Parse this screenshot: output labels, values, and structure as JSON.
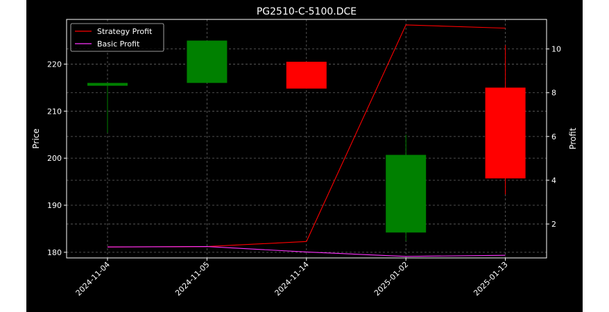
{
  "chart_data": {
    "type": "candlestick",
    "title": "PG2510-C-5100.DCE",
    "ylabel_left": "Price",
    "ylabel_right": "Profit",
    "categories": [
      "2024-11-04",
      "2024-11-05",
      "2024-11-14",
      "2025-01-02",
      "2025-01-13"
    ],
    "ylim_left": [
      178.8,
      229.5
    ],
    "yticks_left": [
      180,
      190,
      200,
      210,
      220
    ],
    "ylim_right": [
      0.45,
      11.35
    ],
    "yticks_right": [
      2,
      4,
      6,
      8,
      10
    ],
    "grid": true,
    "legend_position": "upper-left",
    "candles": [
      {
        "date": "2024-11-04",
        "open": 215.4,
        "close": 216.0,
        "high": 216.0,
        "low": 205.4
      },
      {
        "date": "2024-11-05",
        "open": 216.0,
        "close": 225.0,
        "high": 225.0,
        "low": 216.0
      },
      {
        "date": "2024-11-14",
        "open": 220.5,
        "close": 214.8,
        "high": 220.5,
        "low": 214.8
      },
      {
        "date": "2025-01-02",
        "open": 184.2,
        "close": 200.7,
        "high": 205.0,
        "low": 182.4
      },
      {
        "date": "2025-01-13",
        "open": 215.0,
        "close": 195.7,
        "high": 224.0,
        "low": 192.3
      }
    ],
    "series": [
      {
        "name": "Strategy Profit",
        "axis": "right",
        "color": "#ff0000",
        "values": [
          0.95,
          0.97,
          1.2,
          11.1,
          10.95
        ]
      },
      {
        "name": "Basic Profit",
        "axis": "right",
        "color": "#ff33ff",
        "values": [
          0.95,
          0.97,
          0.72,
          0.52,
          0.57
        ]
      }
    ],
    "colors": {
      "up": "#008000",
      "down": "#ff0000",
      "background": "#000000",
      "grid": "#666666"
    }
  }
}
